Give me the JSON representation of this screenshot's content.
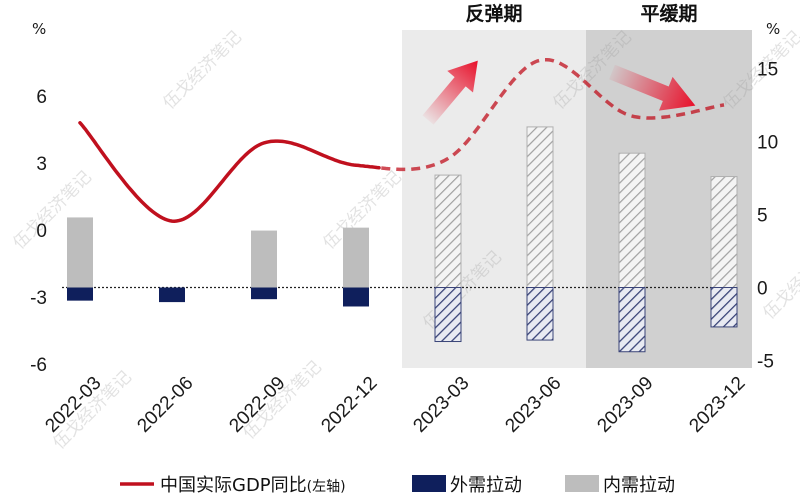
{
  "chart_data": {
    "type": "bar+line",
    "categories": [
      "2022-03",
      "2022-06",
      "2022-09",
      "2022-12",
      "2023-03",
      "2023-06",
      "2023-09",
      "2023-12"
    ],
    "left_axis": {
      "unit": "%",
      "ylim": [
        -6,
        9
      ],
      "ticks": [
        -6,
        -3,
        0,
        3,
        6
      ]
    },
    "right_axis": {
      "unit": "%",
      "ylim": [
        -5,
        17.5
      ],
      "ticks": [
        -5,
        0,
        5,
        10,
        15
      ]
    },
    "series": [
      {
        "name": "中国实际GDP同比",
        "axis_note": "(左轴)",
        "type": "line",
        "axis": "left",
        "color": "#c0101e",
        "actual_count": 4,
        "values": [
          4.8,
          0.4,
          3.9,
          2.9,
          3.2,
          7.6,
          5.1,
          5.6
        ]
      },
      {
        "name": "外需拉动",
        "type": "bar",
        "axis": "right",
        "color": "#0f1f5c",
        "values": [
          -0.9,
          -1.0,
          -0.8,
          -1.3,
          -3.7,
          -3.6,
          -4.4,
          -2.7
        ]
      },
      {
        "name": "内需拉动",
        "type": "bar",
        "axis": "right",
        "color": "#bdbdbd",
        "values": [
          4.8,
          -0.7,
          3.9,
          4.1,
          7.7,
          11.0,
          9.2,
          7.6
        ]
      }
    ],
    "forecast_from": "2023-03",
    "phases": [
      {
        "label": "反弹期",
        "from": "2023-03",
        "to": "2023-06",
        "color": "#ebebeb"
      },
      {
        "label": "平缓期",
        "from": "2023-09",
        "to": "2023-12",
        "color": "#d0d0d0"
      }
    ],
    "legend": [
      "中国实际GDP同比",
      "外需拉动",
      "内需拉动"
    ]
  },
  "watermark": "伍戈经济笔记"
}
